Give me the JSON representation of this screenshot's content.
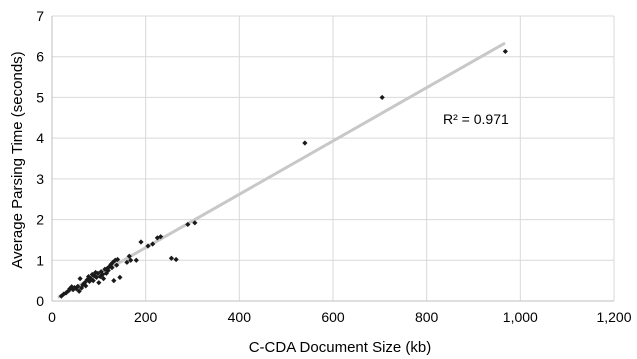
{
  "chart_data": {
    "type": "scatter",
    "xlabel": "C-CDA Document Size (kb)",
    "ylabel": "Average Parsing Time (seconds)",
    "xlim": [
      0,
      1200
    ],
    "ylim": [
      0,
      7
    ],
    "x_ticks": [
      0,
      200,
      400,
      600,
      800,
      1000,
      1200
    ],
    "x_tick_labels": [
      "0",
      "200",
      "400",
      "600",
      "800",
      "1,000",
      "1,200"
    ],
    "y_ticks": [
      0,
      1,
      2,
      3,
      4,
      5,
      6,
      7
    ],
    "y_tick_labels": [
      "0",
      "1",
      "2",
      "3",
      "4",
      "5",
      "6",
      "7"
    ],
    "grid": true,
    "legend": "none",
    "point_color": "#1a1a1a",
    "trendline_color": "#c8c8c8",
    "trendline": {
      "x": [
        15,
        965
      ],
      "y": [
        0.1,
        6.32
      ]
    },
    "annotation": "R² = 0.971",
    "points": [
      {
        "x": 20,
        "y": 0.12
      },
      {
        "x": 25,
        "y": 0.17
      },
      {
        "x": 30,
        "y": 0.2
      },
      {
        "x": 35,
        "y": 0.25
      },
      {
        "x": 38,
        "y": 0.3
      },
      {
        "x": 42,
        "y": 0.35
      },
      {
        "x": 45,
        "y": 0.28
      },
      {
        "x": 48,
        "y": 0.33
      },
      {
        "x": 52,
        "y": 0.3
      },
      {
        "x": 55,
        "y": 0.36
      },
      {
        "x": 58,
        "y": 0.24
      },
      {
        "x": 60,
        "y": 0.55
      },
      {
        "x": 63,
        "y": 0.32
      },
      {
        "x": 66,
        "y": 0.4
      },
      {
        "x": 70,
        "y": 0.45
      },
      {
        "x": 72,
        "y": 0.37
      },
      {
        "x": 75,
        "y": 0.52
      },
      {
        "x": 78,
        "y": 0.6
      },
      {
        "x": 80,
        "y": 0.48
      },
      {
        "x": 83,
        "y": 0.55
      },
      {
        "x": 86,
        "y": 0.65
      },
      {
        "x": 88,
        "y": 0.5
      },
      {
        "x": 90,
        "y": 0.62
      },
      {
        "x": 93,
        "y": 0.7
      },
      {
        "x": 95,
        "y": 0.58
      },
      {
        "x": 98,
        "y": 0.68
      },
      {
        "x": 100,
        "y": 0.45
      },
      {
        "x": 103,
        "y": 0.6
      },
      {
        "x": 105,
        "y": 0.72
      },
      {
        "x": 108,
        "y": 0.65
      },
      {
        "x": 110,
        "y": 0.55
      },
      {
        "x": 113,
        "y": 0.78
      },
      {
        "x": 116,
        "y": 0.68
      },
      {
        "x": 118,
        "y": 0.8
      },
      {
        "x": 120,
        "y": 0.75
      },
      {
        "x": 123,
        "y": 0.85
      },
      {
        "x": 126,
        "y": 0.9
      },
      {
        "x": 128,
        "y": 0.82
      },
      {
        "x": 130,
        "y": 0.95
      },
      {
        "x": 132,
        "y": 0.5
      },
      {
        "x": 135,
        "y": 1.0
      },
      {
        "x": 138,
        "y": 0.88
      },
      {
        "x": 140,
        "y": 1.02
      },
      {
        "x": 145,
        "y": 0.58
      },
      {
        "x": 160,
        "y": 0.95
      },
      {
        "x": 165,
        "y": 1.1
      },
      {
        "x": 168,
        "y": 1.0
      },
      {
        "x": 180,
        "y": 1.0
      },
      {
        "x": 190,
        "y": 1.45
      },
      {
        "x": 205,
        "y": 1.35
      },
      {
        "x": 215,
        "y": 1.4
      },
      {
        "x": 225,
        "y": 1.55
      },
      {
        "x": 232,
        "y": 1.58
      },
      {
        "x": 255,
        "y": 1.05
      },
      {
        "x": 265,
        "y": 1.02
      },
      {
        "x": 290,
        "y": 1.88
      },
      {
        "x": 305,
        "y": 1.92
      },
      {
        "x": 540,
        "y": 3.88
      },
      {
        "x": 705,
        "y": 5.0
      },
      {
        "x": 968,
        "y": 6.13
      }
    ]
  }
}
